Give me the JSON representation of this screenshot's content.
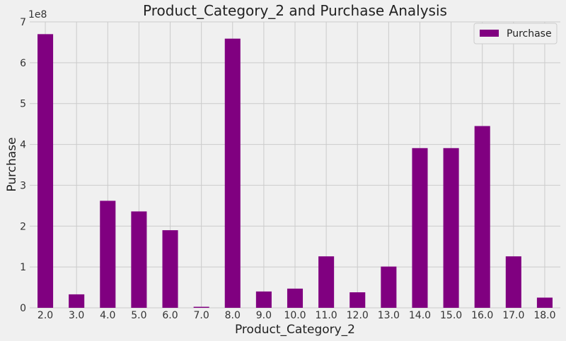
{
  "chart_data": {
    "type": "bar",
    "title": "Product_Category_2 and Purchase Analysis",
    "xlabel": "Product_Category_2",
    "ylabel": "Purchase",
    "y_offset_label": "1e8",
    "y_scale_factor": 100000000,
    "ylim": [
      0,
      700000000
    ],
    "yticks": [
      0,
      100000000,
      200000000,
      300000000,
      400000000,
      500000000,
      600000000,
      700000000
    ],
    "ytick_labels": [
      "0",
      "1",
      "2",
      "3",
      "4",
      "5",
      "6",
      "7"
    ],
    "categories": [
      "2.0",
      "3.0",
      "4.0",
      "5.0",
      "6.0",
      "7.0",
      "8.0",
      "9.0",
      "10.0",
      "11.0",
      "12.0",
      "13.0",
      "14.0",
      "15.0",
      "16.0",
      "17.0",
      "18.0"
    ],
    "series": [
      {
        "name": "Purchase",
        "color": "#800080",
        "values": [
          670000000,
          33000000,
          262000000,
          236000000,
          190000000,
          2500000,
          659000000,
          40000000,
          47000000,
          126000000,
          38000000,
          101000000,
          391000000,
          391000000,
          445000000,
          126000000,
          25000000
        ]
      }
    ],
    "grid": true,
    "legend": "top-right"
  }
}
